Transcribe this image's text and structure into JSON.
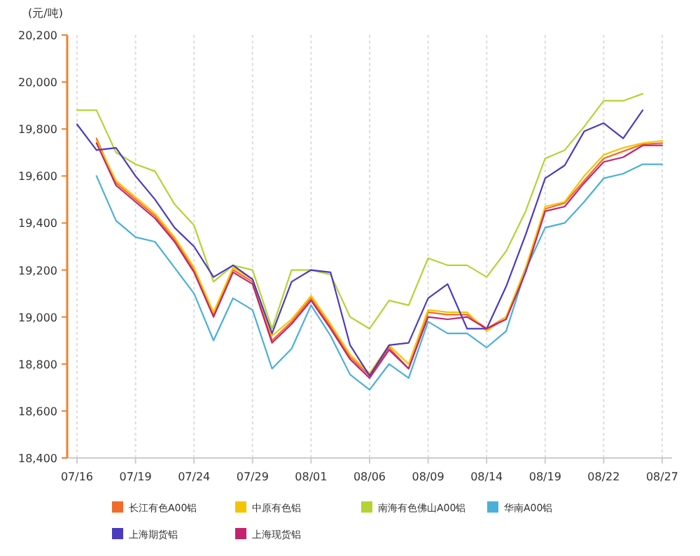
{
  "chart_data": {
    "type": "line",
    "ylabel": "(元/吨)",
    "categories": [
      "07/16",
      null,
      null,
      "07/19",
      null,
      null,
      "07/24",
      null,
      null,
      "07/29",
      null,
      null,
      "08/01",
      null,
      null,
      "08/06",
      null,
      null,
      "08/09",
      null,
      null,
      "08/14",
      null,
      null,
      "08/19",
      null,
      null,
      "08/22",
      null,
      null,
      "08/27"
    ],
    "ylim": [
      18400,
      20200
    ],
    "yticks": [
      {
        "value": 18400,
        "label": "18,400"
      },
      {
        "value": 18600,
        "label": "18,600"
      },
      {
        "value": 18800,
        "label": "18,800"
      },
      {
        "value": 19000,
        "label": "19,000"
      },
      {
        "value": 19200,
        "label": "19,200"
      },
      {
        "value": 19400,
        "label": "19,400"
      },
      {
        "value": 19600,
        "label": "19,600"
      },
      {
        "value": 19800,
        "label": "19,800"
      },
      {
        "value": 20000,
        "label": "20,000"
      },
      {
        "value": 20200,
        "label": "20,200"
      }
    ],
    "grid": "x",
    "legend": "bottom",
    "marker": "none",
    "line_style": "solid",
    "series": [
      {
        "name": "长江有色A00铝",
        "color": "#f26b2b",
        "values": [
          null,
          19760,
          19570,
          19500,
          19430,
          19330,
          19200,
          19010,
          19200,
          19150,
          18900,
          18980,
          19080,
          18960,
          18830,
          18750,
          18870,
          18780,
          19020,
          19010,
          19010,
          18950,
          19000,
          19200,
          19460,
          19485,
          19580,
          19675,
          19705,
          19735,
          19740
        ]
      },
      {
        "name": "中原有色铝",
        "color": "#f5c400",
        "values": [
          null,
          19750,
          19580,
          19510,
          19440,
          19340,
          19210,
          19020,
          19210,
          19160,
          18920,
          18990,
          19090,
          18970,
          18840,
          18760,
          18880,
          18800,
          19030,
          19020,
          19020,
          18940,
          19000,
          19210,
          19470,
          19490,
          19600,
          19690,
          19720,
          19740,
          19750
        ]
      },
      {
        "name": "南海有色佛山A00铝",
        "color": "#b5d334",
        "values": [
          19880,
          19880,
          19700,
          19650,
          19620,
          19480,
          19390,
          19150,
          19220,
          19200,
          18950,
          19200,
          19200,
          19180,
          19000,
          18950,
          19070,
          19050,
          19250,
          19220,
          19220,
          19170,
          19280,
          19450,
          19675,
          19710,
          19810,
          19920,
          19920,
          19950,
          null
        ]
      },
      {
        "name": "华南A00铝",
        "color": "#4ab0d9",
        "values": [
          null,
          19600,
          19410,
          19340,
          19320,
          19210,
          19100,
          18900,
          19080,
          19030,
          18780,
          18865,
          19050,
          18920,
          18755,
          18690,
          18800,
          18740,
          18980,
          18930,
          18930,
          18870,
          18940,
          19200,
          19380,
          19400,
          19490,
          19590,
          19610,
          19650,
          19650
        ]
      },
      {
        "name": "上海期货铝",
        "color": "#4b3bbf",
        "values": [
          19820,
          19710,
          19720,
          19600,
          19500,
          19380,
          19300,
          19170,
          19220,
          19160,
          18930,
          19150,
          19200,
          19190,
          18880,
          18750,
          18880,
          18890,
          19080,
          19140,
          18950,
          18950,
          19130,
          19350,
          19590,
          19645,
          19790,
          19825,
          19760,
          19880,
          null
        ]
      },
      {
        "name": "上海现货铝",
        "color": "#c2246e",
        "values": [
          null,
          19740,
          19560,
          19490,
          19420,
          19320,
          19190,
          19000,
          19190,
          19140,
          18890,
          18970,
          19070,
          18950,
          18820,
          18740,
          18860,
          18780,
          19000,
          18990,
          19000,
          18950,
          18990,
          19190,
          19450,
          19470,
          19570,
          19660,
          19680,
          19730,
          19730
        ]
      }
    ]
  }
}
